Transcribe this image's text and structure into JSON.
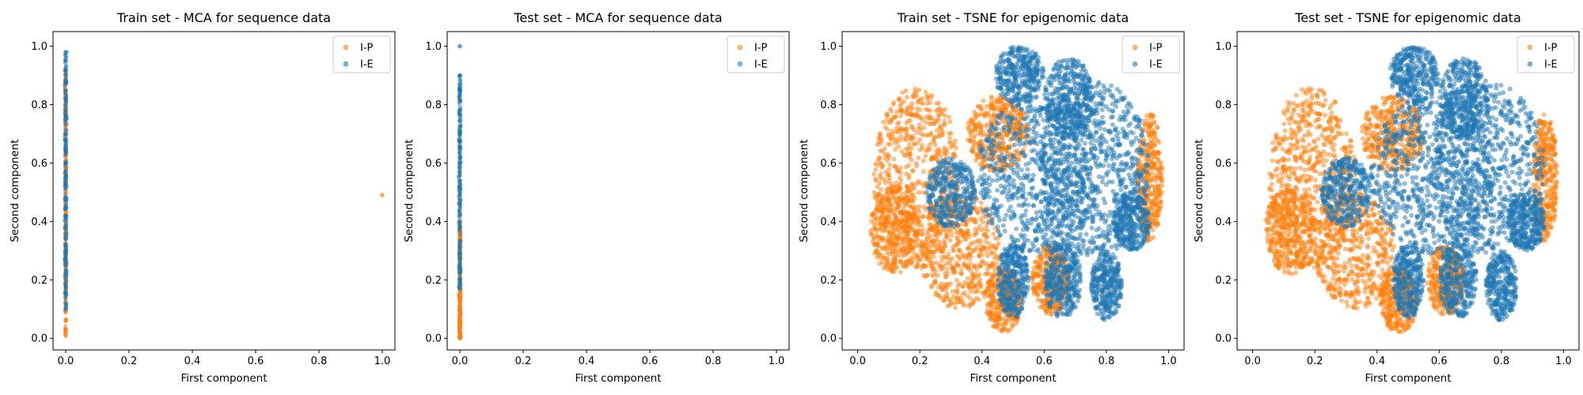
{
  "figure": {
    "colors": {
      "I-P": "#ff7f0e",
      "I-E": "#1f77b4"
    },
    "marker_alpha": 0.5
  },
  "chart_data": [
    {
      "type": "scatter",
      "title": "Train set - MCA for sequence data",
      "xlabel": "First component",
      "ylabel": "Second component",
      "xlim": [
        -0.04,
        1.04
      ],
      "ylim": [
        -0.04,
        1.05
      ],
      "xticks": [
        "0.0",
        "0.2",
        "0.4",
        "0.6",
        "0.8",
        "1.0"
      ],
      "yticks": [
        "0.0",
        "0.2",
        "0.4",
        "0.6",
        "0.8",
        "1.0"
      ],
      "grid": false,
      "legend": "top-right",
      "series": [
        {
          "name": "I-P",
          "color": "#ff7f0e",
          "points": [
            [
              0.0,
              0.01
            ],
            [
              0.0,
              0.03
            ],
            [
              0.0,
              0.06
            ],
            [
              0.0,
              0.09
            ],
            [
              0.0,
              0.12
            ],
            [
              0.0,
              0.16
            ],
            [
              0.0,
              0.2
            ],
            [
              0.0,
              0.25
            ],
            [
              0.0,
              0.3
            ],
            [
              0.0,
              0.36
            ],
            [
              0.0,
              0.42
            ],
            [
              0.0,
              0.48
            ],
            [
              0.0,
              0.55
            ],
            [
              0.0,
              0.62
            ],
            [
              0.0,
              0.7
            ],
            [
              0.0,
              0.78
            ],
            [
              0.0,
              0.85
            ],
            [
              0.0,
              0.9
            ],
            [
              1.0,
              0.49
            ]
          ],
          "vertical_band": {
            "x": 0.0,
            "y_range": [
              0.01,
              0.92
            ]
          }
        },
        {
          "name": "I-E",
          "color": "#1f77b4",
          "points": [
            [
              0.0,
              0.98
            ],
            [
              0.0,
              0.95
            ],
            [
              0.0,
              0.92
            ],
            [
              0.0,
              0.88
            ],
            [
              0.0,
              0.82
            ],
            [
              0.0,
              0.75
            ],
            [
              0.0,
              0.68
            ],
            [
              0.0,
              0.6
            ],
            [
              0.0,
              0.52
            ],
            [
              0.0,
              0.45
            ],
            [
              0.0,
              0.38
            ],
            [
              0.0,
              0.3
            ],
            [
              0.0,
              0.22
            ],
            [
              0.0,
              0.15
            ],
            [
              0.0,
              0.1
            ]
          ],
          "vertical_band": {
            "x": 0.0,
            "y_range": [
              0.1,
              0.98
            ]
          }
        }
      ]
    },
    {
      "type": "scatter",
      "title": "Test set - MCA for sequence data",
      "xlabel": "First component",
      "ylabel": "Second component",
      "xlim": [
        -0.04,
        1.04
      ],
      "ylim": [
        -0.04,
        1.05
      ],
      "xticks": [
        "0.0",
        "0.2",
        "0.4",
        "0.6",
        "0.8",
        "1.0"
      ],
      "yticks": [
        "0.0",
        "0.2",
        "0.4",
        "0.6",
        "0.8",
        "1.0"
      ],
      "grid": false,
      "legend": "top-right",
      "series": [
        {
          "name": "I-P",
          "color": "#ff7f0e",
          "points": [
            [
              0.0,
              0.0
            ],
            [
              0.0,
              0.02
            ],
            [
              0.0,
              0.05
            ],
            [
              0.0,
              0.09
            ],
            [
              0.0,
              0.14
            ],
            [
              0.0,
              0.19
            ],
            [
              0.0,
              0.23
            ],
            [
              0.0,
              0.28
            ],
            [
              0.0,
              0.34
            ],
            [
              0.0,
              0.4
            ]
          ],
          "vertical_band": {
            "x": 0.0,
            "y_range": [
              0.0,
              0.4
            ]
          }
        },
        {
          "name": "I-E",
          "color": "#1f77b4",
          "points": [
            [
              0.0,
              1.0
            ],
            [
              0.0,
              0.9
            ],
            [
              0.0,
              0.85
            ],
            [
              0.0,
              0.78
            ],
            [
              0.0,
              0.7
            ],
            [
              0.0,
              0.62
            ],
            [
              0.0,
              0.54
            ],
            [
              0.0,
              0.46
            ],
            [
              0.0,
              0.38
            ],
            [
              0.0,
              0.3
            ],
            [
              0.0,
              0.24
            ],
            [
              0.0,
              0.17
            ]
          ],
          "vertical_band": {
            "x": 0.0,
            "y_range": [
              0.17,
              0.9
            ]
          }
        }
      ]
    },
    {
      "type": "scatter",
      "title": "Train set - TSNE for epigenomic data",
      "xlabel": "First component",
      "ylabel": "Second component",
      "xlim": [
        -0.05,
        1.05
      ],
      "ylim": [
        -0.04,
        1.05
      ],
      "xticks": [
        "0.0",
        "0.2",
        "0.4",
        "0.6",
        "0.8",
        "1.0"
      ],
      "yticks": [
        "0.0",
        "0.2",
        "0.4",
        "0.6",
        "0.8",
        "1.0"
      ],
      "grid": false,
      "legend": "top-right",
      "series": [
        {
          "name": "I-P",
          "color": "#ff7f0e",
          "regions": [
            {
              "cx": 0.19,
              "cy": 0.55,
              "rx": 0.14,
              "ry": 0.31
            },
            {
              "cx": 0.12,
              "cy": 0.37,
              "rx": 0.08,
              "ry": 0.15
            },
            {
              "cx": 0.33,
              "cy": 0.3,
              "rx": 0.13,
              "ry": 0.2
            },
            {
              "cx": 0.47,
              "cy": 0.13,
              "rx": 0.06,
              "ry": 0.11
            },
            {
              "cx": 0.62,
              "cy": 0.2,
              "rx": 0.06,
              "ry": 0.12
            },
            {
              "cx": 0.94,
              "cy": 0.55,
              "rx": 0.04,
              "ry": 0.22
            },
            {
              "cx": 0.45,
              "cy": 0.7,
              "rx": 0.1,
              "ry": 0.13
            }
          ]
        },
        {
          "name": "I-E",
          "color": "#1f77b4",
          "regions": [
            {
              "cx": 0.58,
              "cy": 0.56,
              "rx": 0.2,
              "ry": 0.27
            },
            {
              "cx": 0.76,
              "cy": 0.58,
              "rx": 0.18,
              "ry": 0.3
            },
            {
              "cx": 0.52,
              "cy": 0.9,
              "rx": 0.08,
              "ry": 0.1
            },
            {
              "cx": 0.68,
              "cy": 0.82,
              "rx": 0.08,
              "ry": 0.14
            },
            {
              "cx": 0.3,
              "cy": 0.5,
              "rx": 0.08,
              "ry": 0.12
            },
            {
              "cx": 0.5,
              "cy": 0.2,
              "rx": 0.05,
              "ry": 0.13
            },
            {
              "cx": 0.66,
              "cy": 0.2,
              "rx": 0.06,
              "ry": 0.13
            },
            {
              "cx": 0.8,
              "cy": 0.18,
              "rx": 0.05,
              "ry": 0.12
            },
            {
              "cx": 0.88,
              "cy": 0.4,
              "rx": 0.06,
              "ry": 0.1
            }
          ]
        }
      ]
    },
    {
      "type": "scatter",
      "title": "Test set - TSNE for epigenomic data",
      "xlabel": "First component",
      "ylabel": "Second component",
      "xlim": [
        -0.05,
        1.05
      ],
      "ylim": [
        -0.04,
        1.05
      ],
      "xticks": [
        "0.0",
        "0.2",
        "0.4",
        "0.6",
        "0.8",
        "1.0"
      ],
      "yticks": [
        "0.0",
        "0.2",
        "0.4",
        "0.6",
        "0.8",
        "1.0"
      ],
      "grid": false,
      "legend": "top-right",
      "series": [
        {
          "name": "I-P",
          "color": "#ff7f0e",
          "regions": [
            {
              "cx": 0.19,
              "cy": 0.55,
              "rx": 0.14,
              "ry": 0.31
            },
            {
              "cx": 0.12,
              "cy": 0.37,
              "rx": 0.08,
              "ry": 0.15
            },
            {
              "cx": 0.33,
              "cy": 0.3,
              "rx": 0.13,
              "ry": 0.2
            },
            {
              "cx": 0.47,
              "cy": 0.13,
              "rx": 0.06,
              "ry": 0.11
            },
            {
              "cx": 0.62,
              "cy": 0.2,
              "rx": 0.06,
              "ry": 0.12
            },
            {
              "cx": 0.94,
              "cy": 0.55,
              "rx": 0.04,
              "ry": 0.22
            },
            {
              "cx": 0.45,
              "cy": 0.7,
              "rx": 0.1,
              "ry": 0.13
            }
          ]
        },
        {
          "name": "I-E",
          "color": "#1f77b4",
          "regions": [
            {
              "cx": 0.58,
              "cy": 0.56,
              "rx": 0.2,
              "ry": 0.27
            },
            {
              "cx": 0.76,
              "cy": 0.58,
              "rx": 0.18,
              "ry": 0.3
            },
            {
              "cx": 0.52,
              "cy": 0.9,
              "rx": 0.08,
              "ry": 0.1
            },
            {
              "cx": 0.68,
              "cy": 0.82,
              "rx": 0.08,
              "ry": 0.14
            },
            {
              "cx": 0.3,
              "cy": 0.5,
              "rx": 0.08,
              "ry": 0.12
            },
            {
              "cx": 0.5,
              "cy": 0.2,
              "rx": 0.05,
              "ry": 0.13
            },
            {
              "cx": 0.66,
              "cy": 0.2,
              "rx": 0.06,
              "ry": 0.13
            },
            {
              "cx": 0.8,
              "cy": 0.18,
              "rx": 0.05,
              "ry": 0.12
            },
            {
              "cx": 0.88,
              "cy": 0.4,
              "rx": 0.06,
              "ry": 0.1
            }
          ]
        }
      ]
    }
  ]
}
